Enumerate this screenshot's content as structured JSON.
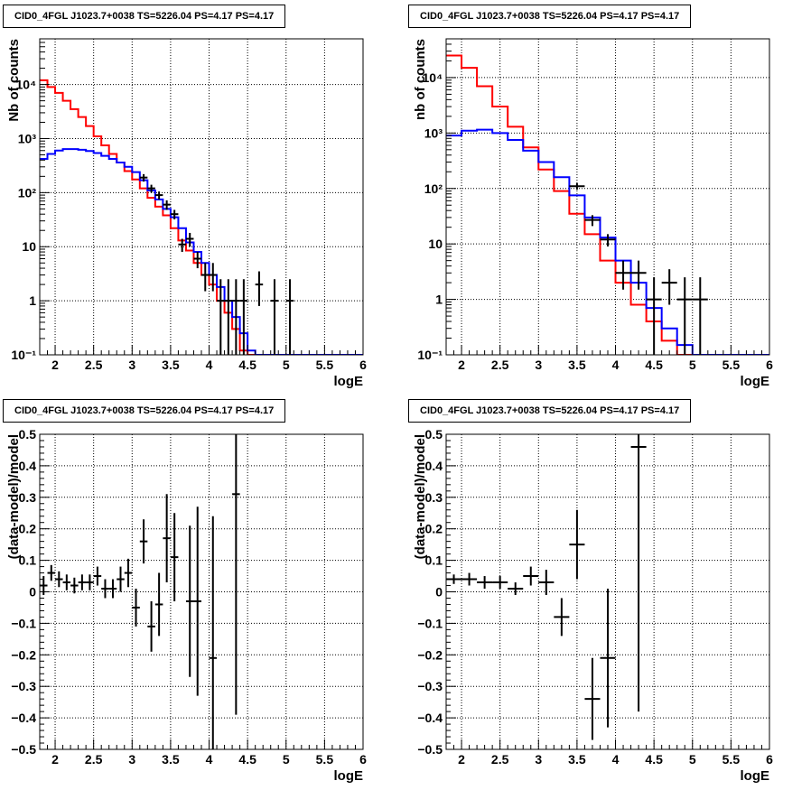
{
  "chart_data": [
    {
      "type": "line",
      "title": "CID0_4FGL J1023.7+0038 TS=5226.04 PS=4.17 PS=4.17",
      "xlabel": "logE",
      "ylabel": "Nb of counts",
      "xlim": [
        1.8,
        6.0
      ],
      "ylim": [
        0.1,
        70000
      ],
      "yscale": "log",
      "grid": true,
      "xticks": [
        2,
        2.5,
        3,
        3.5,
        4,
        4.5,
        5,
        5.5,
        6
      ],
      "xtick_labels": [
        "2",
        "2.5",
        "3",
        "3.5",
        "4",
        "4.5",
        "5",
        "5.5",
        "6"
      ],
      "yticks": [
        0.1,
        1,
        10,
        100,
        1000,
        10000
      ],
      "ytick_labels": [
        "10⁻¹",
        "1",
        "10",
        "10²",
        "10³",
        "10⁴"
      ],
      "series": [
        {
          "color": "#ff0000",
          "style": "step",
          "bin_edges": [
            1.8,
            1.9,
            2.0,
            2.1,
            2.2,
            2.3,
            2.4,
            2.5,
            2.6,
            2.7,
            2.8,
            2.9,
            3.0,
            3.1,
            3.2,
            3.3,
            3.4,
            3.5,
            3.6,
            3.7,
            3.8,
            3.9,
            4.0,
            4.1,
            4.2,
            4.3,
            4.4,
            4.5,
            4.6,
            4.7,
            4.8,
            4.9,
            5.0,
            5.1,
            5.2,
            5.3,
            5.4,
            5.5,
            5.6,
            5.7,
            5.8,
            5.9,
            6.0
          ],
          "values": [
            12000,
            9000,
            7000,
            5000,
            3500,
            2500,
            1700,
            1100,
            750,
            520,
            360,
            250,
            175,
            120,
            80,
            55,
            38,
            22,
            13,
            8.5,
            5,
            3,
            2,
            1,
            0.6,
            0.3,
            0.12,
            0.1,
            0.1,
            0.1,
            0.1,
            0.1,
            0.1,
            0.1,
            0.1,
            0.1,
            0.1,
            0.1,
            0.1,
            0.1,
            0.1,
            0.1
          ]
        },
        {
          "color": "#0000ff",
          "style": "step",
          "bin_edges": [
            1.8,
            1.9,
            2.0,
            2.1,
            2.2,
            2.3,
            2.4,
            2.5,
            2.6,
            2.7,
            2.8,
            2.9,
            3.0,
            3.1,
            3.2,
            3.3,
            3.4,
            3.5,
            3.6,
            3.7,
            3.8,
            3.9,
            4.0,
            4.1,
            4.2,
            4.3,
            4.4,
            4.5,
            4.6,
            4.7,
            4.8,
            4.9,
            5.0,
            5.1,
            5.2,
            5.3,
            5.4,
            5.5,
            5.6,
            5.7,
            5.8,
            5.9,
            6.0
          ],
          "values": [
            420,
            520,
            600,
            640,
            640,
            620,
            590,
            540,
            480,
            420,
            360,
            300,
            240,
            170,
            110,
            75,
            50,
            35,
            22,
            12,
            8,
            5,
            3,
            1.8,
            1,
            0.5,
            0.25,
            0.12,
            0.1,
            0.1,
            0.1,
            0.1,
            0.1,
            0.1,
            0.1,
            0.1,
            0.1,
            0.1,
            0.1,
            0.1,
            0.1,
            0.1
          ]
        },
        {
          "color": "#000000",
          "style": "points",
          "x": [
            3.15,
            3.25,
            3.35,
            3.45,
            3.55,
            3.65,
            3.75,
            3.85,
            3.95,
            4.05,
            4.15,
            4.25,
            4.35,
            4.45,
            4.65,
            4.85,
            5.05
          ],
          "y": [
            190,
            120,
            90,
            60,
            40,
            11,
            14,
            6,
            3,
            3,
            1,
            1,
            1,
            1,
            2,
            1,
            1
          ],
          "ylo": [
            160,
            100,
            75,
            48,
            32,
            8,
            10,
            4,
            1.5,
            1.5,
            0.1,
            0.1,
            0.1,
            0.1,
            0.8,
            0.1,
            0.1
          ],
          "yhi": [
            220,
            140,
            105,
            72,
            48,
            14,
            18,
            8,
            5,
            5,
            2.5,
            2.5,
            2.5,
            2.5,
            3.5,
            2.5,
            2.5
          ],
          "xerr": 0.05
        }
      ]
    },
    {
      "type": "line",
      "title": "CID0_4FGL J1023.7+0038 TS=5226.04 PS=4.17 PS=4.17",
      "xlabel": "logE",
      "ylabel": "nb of counts",
      "xlim": [
        1.8,
        6.0
      ],
      "ylim": [
        0.1,
        50000
      ],
      "yscale": "log",
      "grid": true,
      "xticks": [
        2,
        2.5,
        3,
        3.5,
        4,
        4.5,
        5,
        5.5,
        6
      ],
      "xtick_labels": [
        "2",
        "2.5",
        "3",
        "3.5",
        "4",
        "4.5",
        "5",
        "5.5",
        "6"
      ],
      "yticks": [
        0.1,
        1,
        10,
        100,
        1000,
        10000
      ],
      "ytick_labels": [
        "10⁻¹",
        "1",
        "10",
        "10²",
        "10³",
        "10⁴"
      ],
      "series": [
        {
          "color": "#ff0000",
          "style": "step",
          "bin_edges": [
            1.8,
            2.0,
            2.2,
            2.4,
            2.6,
            2.8,
            3.0,
            3.2,
            3.4,
            3.6,
            3.8,
            4.0,
            4.2,
            4.4,
            4.6,
            4.8,
            5.0,
            5.2,
            5.4,
            5.6,
            5.8,
            6.0
          ],
          "values": [
            25000,
            15000,
            7000,
            3000,
            1300,
            550,
            220,
            90,
            35,
            15,
            5,
            2,
            0.8,
            0.4,
            0.18,
            0.1,
            0.1,
            0.1,
            0.1,
            0.1,
            0.1
          ]
        },
        {
          "color": "#0000ff",
          "style": "step",
          "bin_edges": [
            1.8,
            2.0,
            2.2,
            2.4,
            2.6,
            2.8,
            3.0,
            3.2,
            3.4,
            3.6,
            3.8,
            4.0,
            4.2,
            4.4,
            4.6,
            4.8,
            5.0,
            5.2,
            5.4,
            5.6,
            5.8,
            6.0
          ],
          "values": [
            900,
            1100,
            1150,
            1000,
            750,
            480,
            300,
            160,
            75,
            30,
            13,
            5,
            2,
            0.7,
            0.3,
            0.15,
            0.1,
            0.1,
            0.1,
            0.1,
            0.1
          ]
        },
        {
          "color": "#000000",
          "style": "points",
          "x": [
            3.5,
            3.7,
            3.9,
            4.1,
            4.3,
            4.5,
            4.7,
            4.9,
            5.1
          ],
          "y": [
            110,
            27,
            12,
            3,
            3,
            1,
            2,
            1,
            1
          ],
          "ylo": [
            95,
            21,
            9,
            1.5,
            1.5,
            0.1,
            0.8,
            0.1,
            0.1
          ],
          "yhi": [
            125,
            33,
            15,
            5,
            5,
            2.5,
            3.5,
            2.5,
            2.5
          ],
          "xerr": 0.1
        }
      ]
    },
    {
      "type": "scatter",
      "title": "CID0_4FGL J1023.7+0038 TS=5226.04 PS=4.17 PS=4.17",
      "xlabel": "logE",
      "ylabel": "(data-model)/model",
      "xlim": [
        1.8,
        6.0
      ],
      "ylim": [
        -0.5,
        0.5
      ],
      "yscale": "linear",
      "grid": true,
      "xticks": [
        2,
        2.5,
        3,
        3.5,
        4,
        4.5,
        5,
        5.5,
        6
      ],
      "xtick_labels": [
        "2",
        "2.5",
        "3",
        "3.5",
        "4",
        "4.5",
        "5",
        "5.5",
        "6"
      ],
      "yticks": [
        -0.5,
        -0.4,
        -0.3,
        -0.2,
        -0.1,
        0,
        0.1,
        0.2,
        0.3,
        0.4,
        0.5
      ],
      "ytick_labels": [
        "−0.5",
        "−0.4",
        "−0.3",
        "−0.2",
        "−0.1",
        "0",
        "0.1",
        "0.2",
        "0.3",
        "0.4",
        "0.5"
      ],
      "series": [
        {
          "color": "#000000",
          "style": "points",
          "x": [
            1.85,
            1.95,
            2.05,
            2.15,
            2.25,
            2.35,
            2.45,
            2.55,
            2.65,
            2.75,
            2.85,
            2.95,
            3.05,
            3.15,
            3.25,
            3.35,
            3.45,
            3.55,
            3.75,
            3.85,
            4.05,
            4.35
          ],
          "y": [
            0.02,
            0.06,
            0.04,
            0.03,
            0.02,
            0.03,
            0.03,
            0.05,
            0.01,
            0.01,
            0.04,
            0.06,
            -0.05,
            0.16,
            -0.11,
            -0.04,
            0.17,
            0.11,
            -0.03,
            -0.03,
            -0.21,
            0.31
          ],
          "yerr": [
            0.03,
            0.025,
            0.025,
            0.025,
            0.025,
            0.025,
            0.025,
            0.03,
            0.03,
            0.03,
            0.04,
            0.045,
            0.06,
            0.07,
            0.08,
            0.1,
            0.14,
            0.14,
            0.24,
            0.3,
            0.45,
            0.7
          ],
          "xerr": 0.05
        }
      ]
    },
    {
      "type": "scatter",
      "title": "CID0_4FGL J1023.7+0038 TS=5226.04 PS=4.17 PS=4.17",
      "xlabel": "logE",
      "ylabel": "(data-model)/model",
      "xlim": [
        1.8,
        6.0
      ],
      "ylim": [
        -0.5,
        0.5
      ],
      "yscale": "linear",
      "grid": true,
      "xticks": [
        2,
        2.5,
        3,
        3.5,
        4,
        4.5,
        5,
        5.5,
        6
      ],
      "xtick_labels": [
        "2",
        "2.5",
        "3",
        "3.5",
        "4",
        "4.5",
        "5",
        "5.5",
        "6"
      ],
      "yticks": [
        -0.5,
        -0.4,
        -0.3,
        -0.2,
        -0.1,
        0,
        0.1,
        0.2,
        0.3,
        0.4,
        0.5
      ],
      "ytick_labels": [
        "−0.5",
        "−0.4",
        "−0.3",
        "−0.2",
        "−0.1",
        "0",
        "0.1",
        "0.2",
        "0.3",
        "0.4",
        "0.5"
      ],
      "series": [
        {
          "color": "#000000",
          "style": "points",
          "x": [
            1.9,
            2.1,
            2.3,
            2.5,
            2.7,
            2.9,
            3.1,
            3.3,
            3.5,
            3.7,
            3.9,
            4.3
          ],
          "y": [
            0.04,
            0.04,
            0.03,
            0.03,
            0.01,
            0.05,
            0.03,
            -0.08,
            0.15,
            -0.34,
            -0.21,
            0.46
          ],
          "yerr": [
            0.015,
            0.02,
            0.02,
            0.02,
            0.02,
            0.03,
            0.04,
            0.06,
            0.11,
            0.13,
            0.22,
            0.84
          ],
          "xerr": 0.1
        }
      ]
    }
  ]
}
